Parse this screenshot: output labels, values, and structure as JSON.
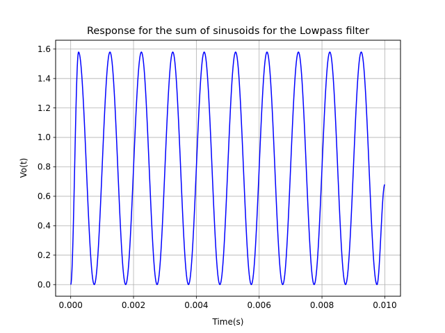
{
  "chart_data": {
    "type": "line",
    "title": "Response for the sum of sinusoids for the Lowpass filter",
    "xlabel": "Time(s)",
    "ylabel": "Vo(t)",
    "xlim": [
      -0.00048,
      0.0105
    ],
    "ylim": [
      -0.079,
      1.66
    ],
    "grid": true,
    "xticks": [
      0.0,
      0.002,
      0.004,
      0.006,
      0.008,
      0.01
    ],
    "xtick_labels": [
      "0.000",
      "0.002",
      "0.004",
      "0.006",
      "0.008",
      "0.010"
    ],
    "yticks": [
      0.0,
      0.2,
      0.4,
      0.6,
      0.8,
      1.0,
      1.2,
      1.4,
      1.6
    ],
    "ytick_labels": [
      "0.0",
      "0.2",
      "0.4",
      "0.6",
      "0.8",
      "1.0",
      "1.2",
      "1.4",
      "1.6"
    ],
    "series": [
      {
        "color": "#0000ff",
        "x": [
          0.0,
          0.00025,
          0.00075,
          0.00125,
          0.00175,
          0.00225,
          0.00275,
          0.00325,
          0.00375,
          0.00425,
          0.00475,
          0.00525,
          0.00575,
          0.00625,
          0.00675,
          0.00725,
          0.00775,
          0.00825,
          0.00875,
          0.00925,
          0.00975,
          0.01
        ],
        "y": [
          0.0,
          1.58,
          0.0,
          1.58,
          0.0,
          1.58,
          0.0,
          1.58,
          0.0,
          1.58,
          0.0,
          1.58,
          0.0,
          1.58,
          0.0,
          1.58,
          0.0,
          1.58,
          0.0,
          1.58,
          0.0,
          0.68
        ]
      }
    ]
  }
}
